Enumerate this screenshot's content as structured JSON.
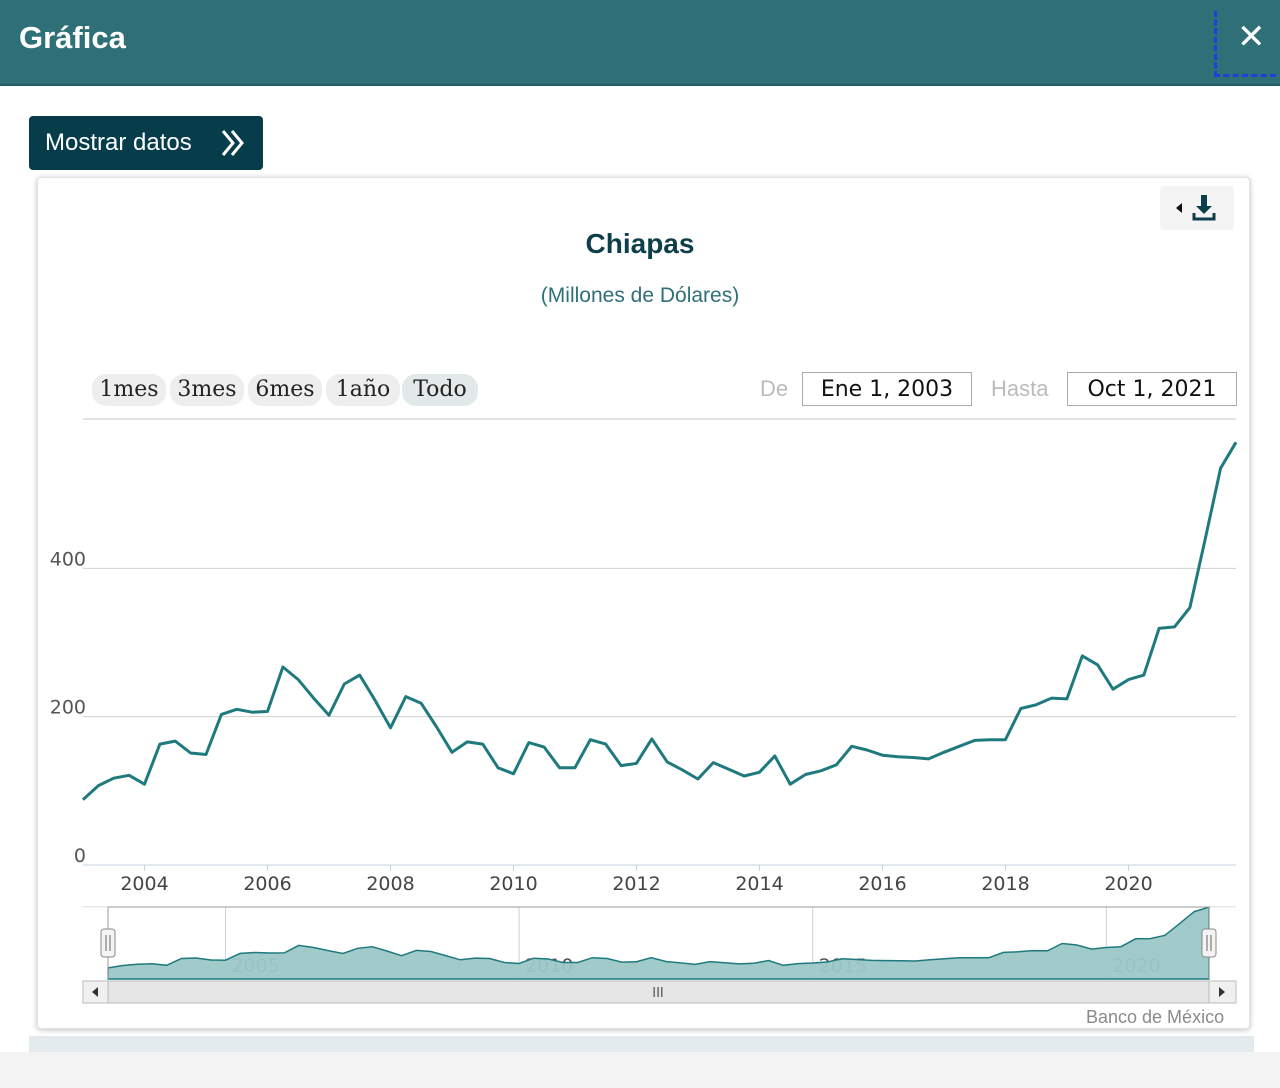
{
  "window": {
    "title": "Gráfica",
    "close_icon": "close-icon"
  },
  "toolbar": {
    "show_data_label": "Mostrar datos",
    "show_data_icon": "double-chevron-right-icon"
  },
  "export": {
    "icon": "download-icon"
  },
  "range_selector": {
    "buttons": [
      {
        "label": "1mes",
        "active": false
      },
      {
        "label": "3mes",
        "active": false
      },
      {
        "label": "6mes",
        "active": false
      },
      {
        "label": "1año",
        "active": false
      },
      {
        "label": "Todo",
        "active": true
      }
    ],
    "from_label": "De",
    "from_value": "Ene 1, 2003",
    "to_label": "Hasta",
    "to_value": "Oct 1, 2021"
  },
  "navigator": {
    "tick_labels": [
      "2005",
      "2010",
      "2015",
      "2020"
    ],
    "scrollbar_grip": "III"
  },
  "credits": "Banco de México",
  "colors": {
    "line": "#1f7a7e",
    "navigator_fill": "#9cc7c8",
    "header": "#2f7078",
    "button": "#073d4b"
  },
  "chart_data": {
    "type": "line",
    "title": "Chiapas",
    "subtitle": "(Millones de Dólares)",
    "xlabel": "",
    "ylabel": "",
    "xlim": [
      "2003-01-01",
      "2021-10-01"
    ],
    "ylim": [
      0,
      600
    ],
    "y_ticks": [
      0,
      200,
      400
    ],
    "x_ticks": [
      "2004",
      "2006",
      "2008",
      "2010",
      "2012",
      "2014",
      "2016",
      "2018",
      "2020"
    ],
    "grid": true,
    "legend": "none",
    "series": [
      {
        "frequency": "quarterly",
        "values": [
          88,
          107,
          117,
          121,
          109,
          163,
          167,
          151,
          149,
          203,
          210,
          206,
          207,
          267,
          250,
          225,
          202,
          244,
          256,
          222,
          185,
          227,
          218,
          186,
          152,
          166,
          163,
          131,
          123,
          165,
          159,
          131,
          131,
          169,
          163,
          134,
          137,
          170,
          139,
          128,
          116,
          138,
          129,
          120,
          125,
          147,
          109,
          122,
          127,
          135,
          160,
          155,
          148,
          146,
          145,
          143,
          152,
          160,
          168,
          169,
          169,
          211,
          216,
          225,
          224,
          282,
          270,
          237,
          250,
          256,
          319,
          321,
          347,
          440,
          535,
          570
        ]
      }
    ]
  }
}
